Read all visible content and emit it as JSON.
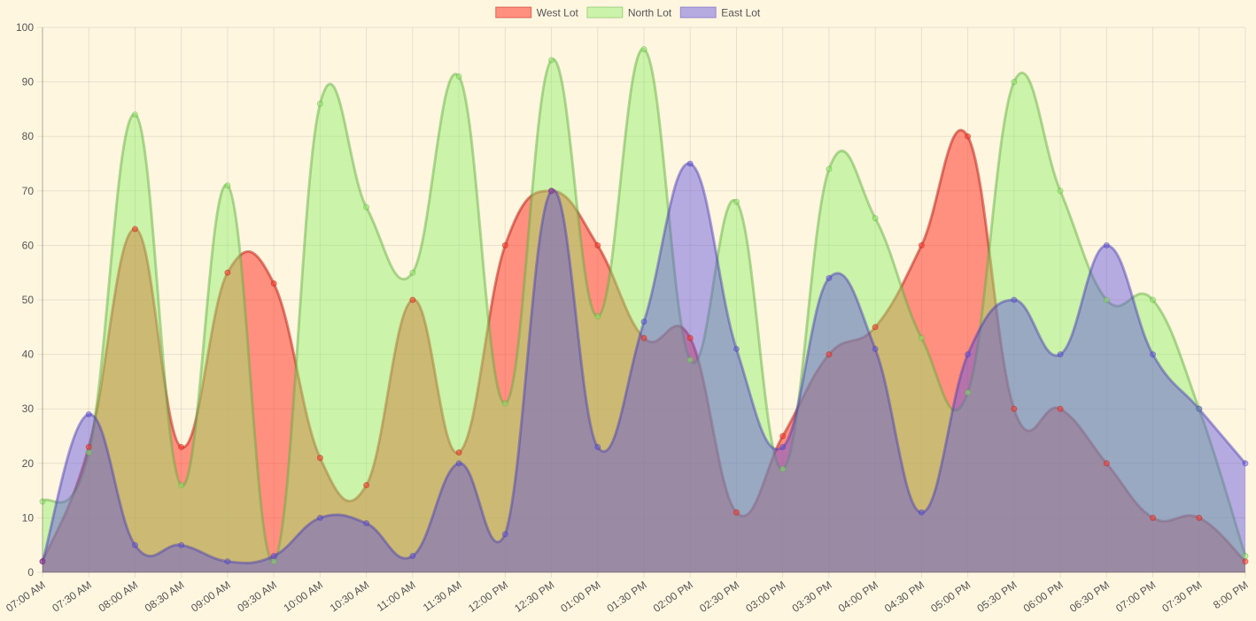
{
  "chart_data": {
    "type": "area",
    "title": "",
    "xlabel": "",
    "ylabel": "",
    "ylim": [
      0,
      100
    ],
    "yticks": [
      0,
      10,
      20,
      30,
      40,
      50,
      60,
      70,
      80,
      90,
      100
    ],
    "grid": true,
    "legend_position": "top-center",
    "categories": [
      "07:00 AM",
      "07:30 AM",
      "08:00 AM",
      "08:30 AM",
      "09:00 AM",
      "09:30 AM",
      "10:00 AM",
      "10:30 AM",
      "11:00 AM",
      "11:30 AM",
      "12:00 PM",
      "12:30 PM",
      "01:00 PM",
      "01:30 PM",
      "02:00 PM",
      "02:30 PM",
      "03:00 PM",
      "03:30 PM",
      "04:00 PM",
      "04:30 PM",
      "05:00 PM",
      "05:30 PM",
      "06:00 PM",
      "06:30 PM",
      "07:00 PM",
      "07:30 PM",
      "8:00 PM"
    ],
    "series": [
      {
        "name": "West Lot",
        "color": "#ff3b30",
        "fill": "rgba(255,59,48,0.55)",
        "stroke": "rgba(190,40,30,0.55)",
        "values": [
          2,
          23,
          63,
          23,
          55,
          53,
          21,
          16,
          50,
          22,
          60,
          70,
          60,
          43,
          43,
          11,
          25,
          40,
          45,
          60,
          80,
          30,
          30,
          20,
          10,
          10,
          2
        ]
      },
      {
        "name": "North Lot",
        "color": "#8ef068",
        "fill": "rgba(142,240,104,0.45)",
        "stroke": "rgba(90,170,60,0.45)",
        "values": [
          13,
          22,
          84,
          16,
          71,
          2,
          86,
          67,
          55,
          91,
          31,
          94,
          47,
          96,
          39,
          68,
          19,
          74,
          65,
          43,
          33,
          90,
          70,
          50,
          50,
          30,
          3
        ]
      },
      {
        "name": "East Lot",
        "color": "#6a5be6",
        "fill": "rgba(94,80,225,0.45)",
        "stroke": "rgba(70,60,180,0.45)",
        "values": [
          2,
          29,
          5,
          5,
          2,
          3,
          10,
          9,
          3,
          20,
          7,
          70,
          23,
          46,
          75,
          41,
          23,
          54,
          41,
          11,
          40,
          50,
          40,
          60,
          40,
          30,
          20
        ]
      }
    ]
  }
}
